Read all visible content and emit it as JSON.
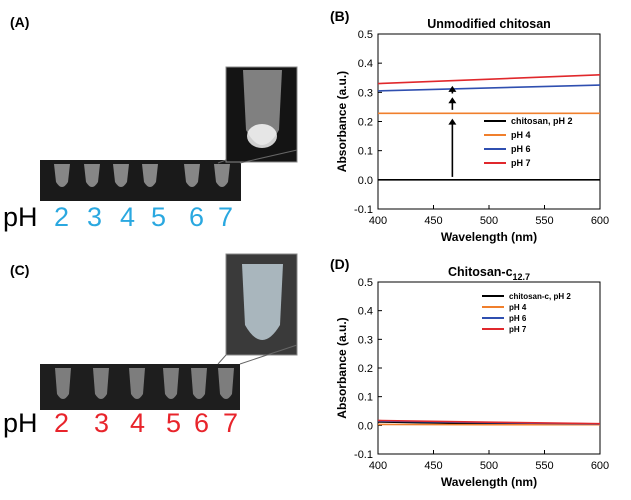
{
  "panels": {
    "A": {
      "label": "(A)",
      "ph_word": "pH",
      "ph_values": [
        "2",
        "3",
        "4",
        "5",
        "6",
        "7"
      ],
      "ph_color": "#2aa8e0"
    },
    "B": {
      "label": "(B)"
    },
    "C": {
      "label": "(C)",
      "ph_word": "pH",
      "ph_values": [
        "2",
        "3",
        "4",
        "5",
        "6",
        "7"
      ],
      "ph_color": "#e8242b"
    },
    "D": {
      "label": "(D)"
    }
  },
  "chart_data": [
    {
      "type": "line",
      "title": "Unmodified chitosan",
      "xlabel": "Wavelength (nm)",
      "ylabel": "Absorbance (a.u.)",
      "xlim": [
        400,
        600
      ],
      "ylim": [
        -0.1,
        0.5
      ],
      "xticks": [
        "400",
        "450",
        "500",
        "550",
        "600"
      ],
      "yticks": [
        "-0.1",
        "0.0",
        "0.1",
        "0.2",
        "0.3",
        "0.4",
        "0.5"
      ],
      "legend_position": "right",
      "series": [
        {
          "name": "chitosan, pH 2",
          "color": "#000000",
          "x": [
            400,
            600
          ],
          "y": [
            0.0,
            0.0
          ]
        },
        {
          "name": "pH 4",
          "color": "#f07f2c",
          "x": [
            400,
            600
          ],
          "y": [
            0.228,
            0.228
          ]
        },
        {
          "name": "pH 6",
          "color": "#2f4fb0",
          "x": [
            400,
            600
          ],
          "y": [
            0.305,
            0.325
          ]
        },
        {
          "name": "pH 7",
          "color": "#e0282c",
          "x": [
            400,
            600
          ],
          "y": [
            0.33,
            0.36
          ]
        }
      ],
      "annotations": [
        {
          "type": "arrow",
          "x": 467,
          "y_from": 0.01,
          "y_to": 0.21
        },
        {
          "type": "arrow",
          "x": 467,
          "y_from": 0.24,
          "y_to": 0.283
        },
        {
          "type": "arrow",
          "x": 467,
          "y_from": 0.296,
          "y_to": 0.322
        }
      ]
    },
    {
      "type": "line",
      "title": "Chitosan-c",
      "title_subscript": "12.7",
      "xlabel": "Wavelength (nm)",
      "ylabel": "Absorbance (a.u.)",
      "xlim": [
        400,
        600
      ],
      "ylim": [
        -0.1,
        0.5
      ],
      "xticks": [
        "400",
        "450",
        "500",
        "550",
        "600"
      ],
      "yticks": [
        "-0.1",
        "0.0",
        "0.1",
        "0.2",
        "0.3",
        "0.4",
        "0.5"
      ],
      "legend_position": "top-right",
      "series": [
        {
          "name": "chitosan-c, pH 2",
          "color": "#000000",
          "x": [
            400,
            500,
            600
          ],
          "y": [
            0.012,
            0.005,
            0.004
          ]
        },
        {
          "name": "pH 4",
          "color": "#f07f2c",
          "x": [
            400,
            500,
            600
          ],
          "y": [
            0.003,
            0.002,
            0.002
          ]
        },
        {
          "name": "pH 6",
          "color": "#2f4fb0",
          "x": [
            400,
            500,
            600
          ],
          "y": [
            0.015,
            0.009,
            0.005
          ]
        },
        {
          "name": "pH 7",
          "color": "#e0282c",
          "x": [
            400,
            500,
            600
          ],
          "y": [
            0.017,
            0.011,
            0.006
          ]
        }
      ]
    }
  ]
}
